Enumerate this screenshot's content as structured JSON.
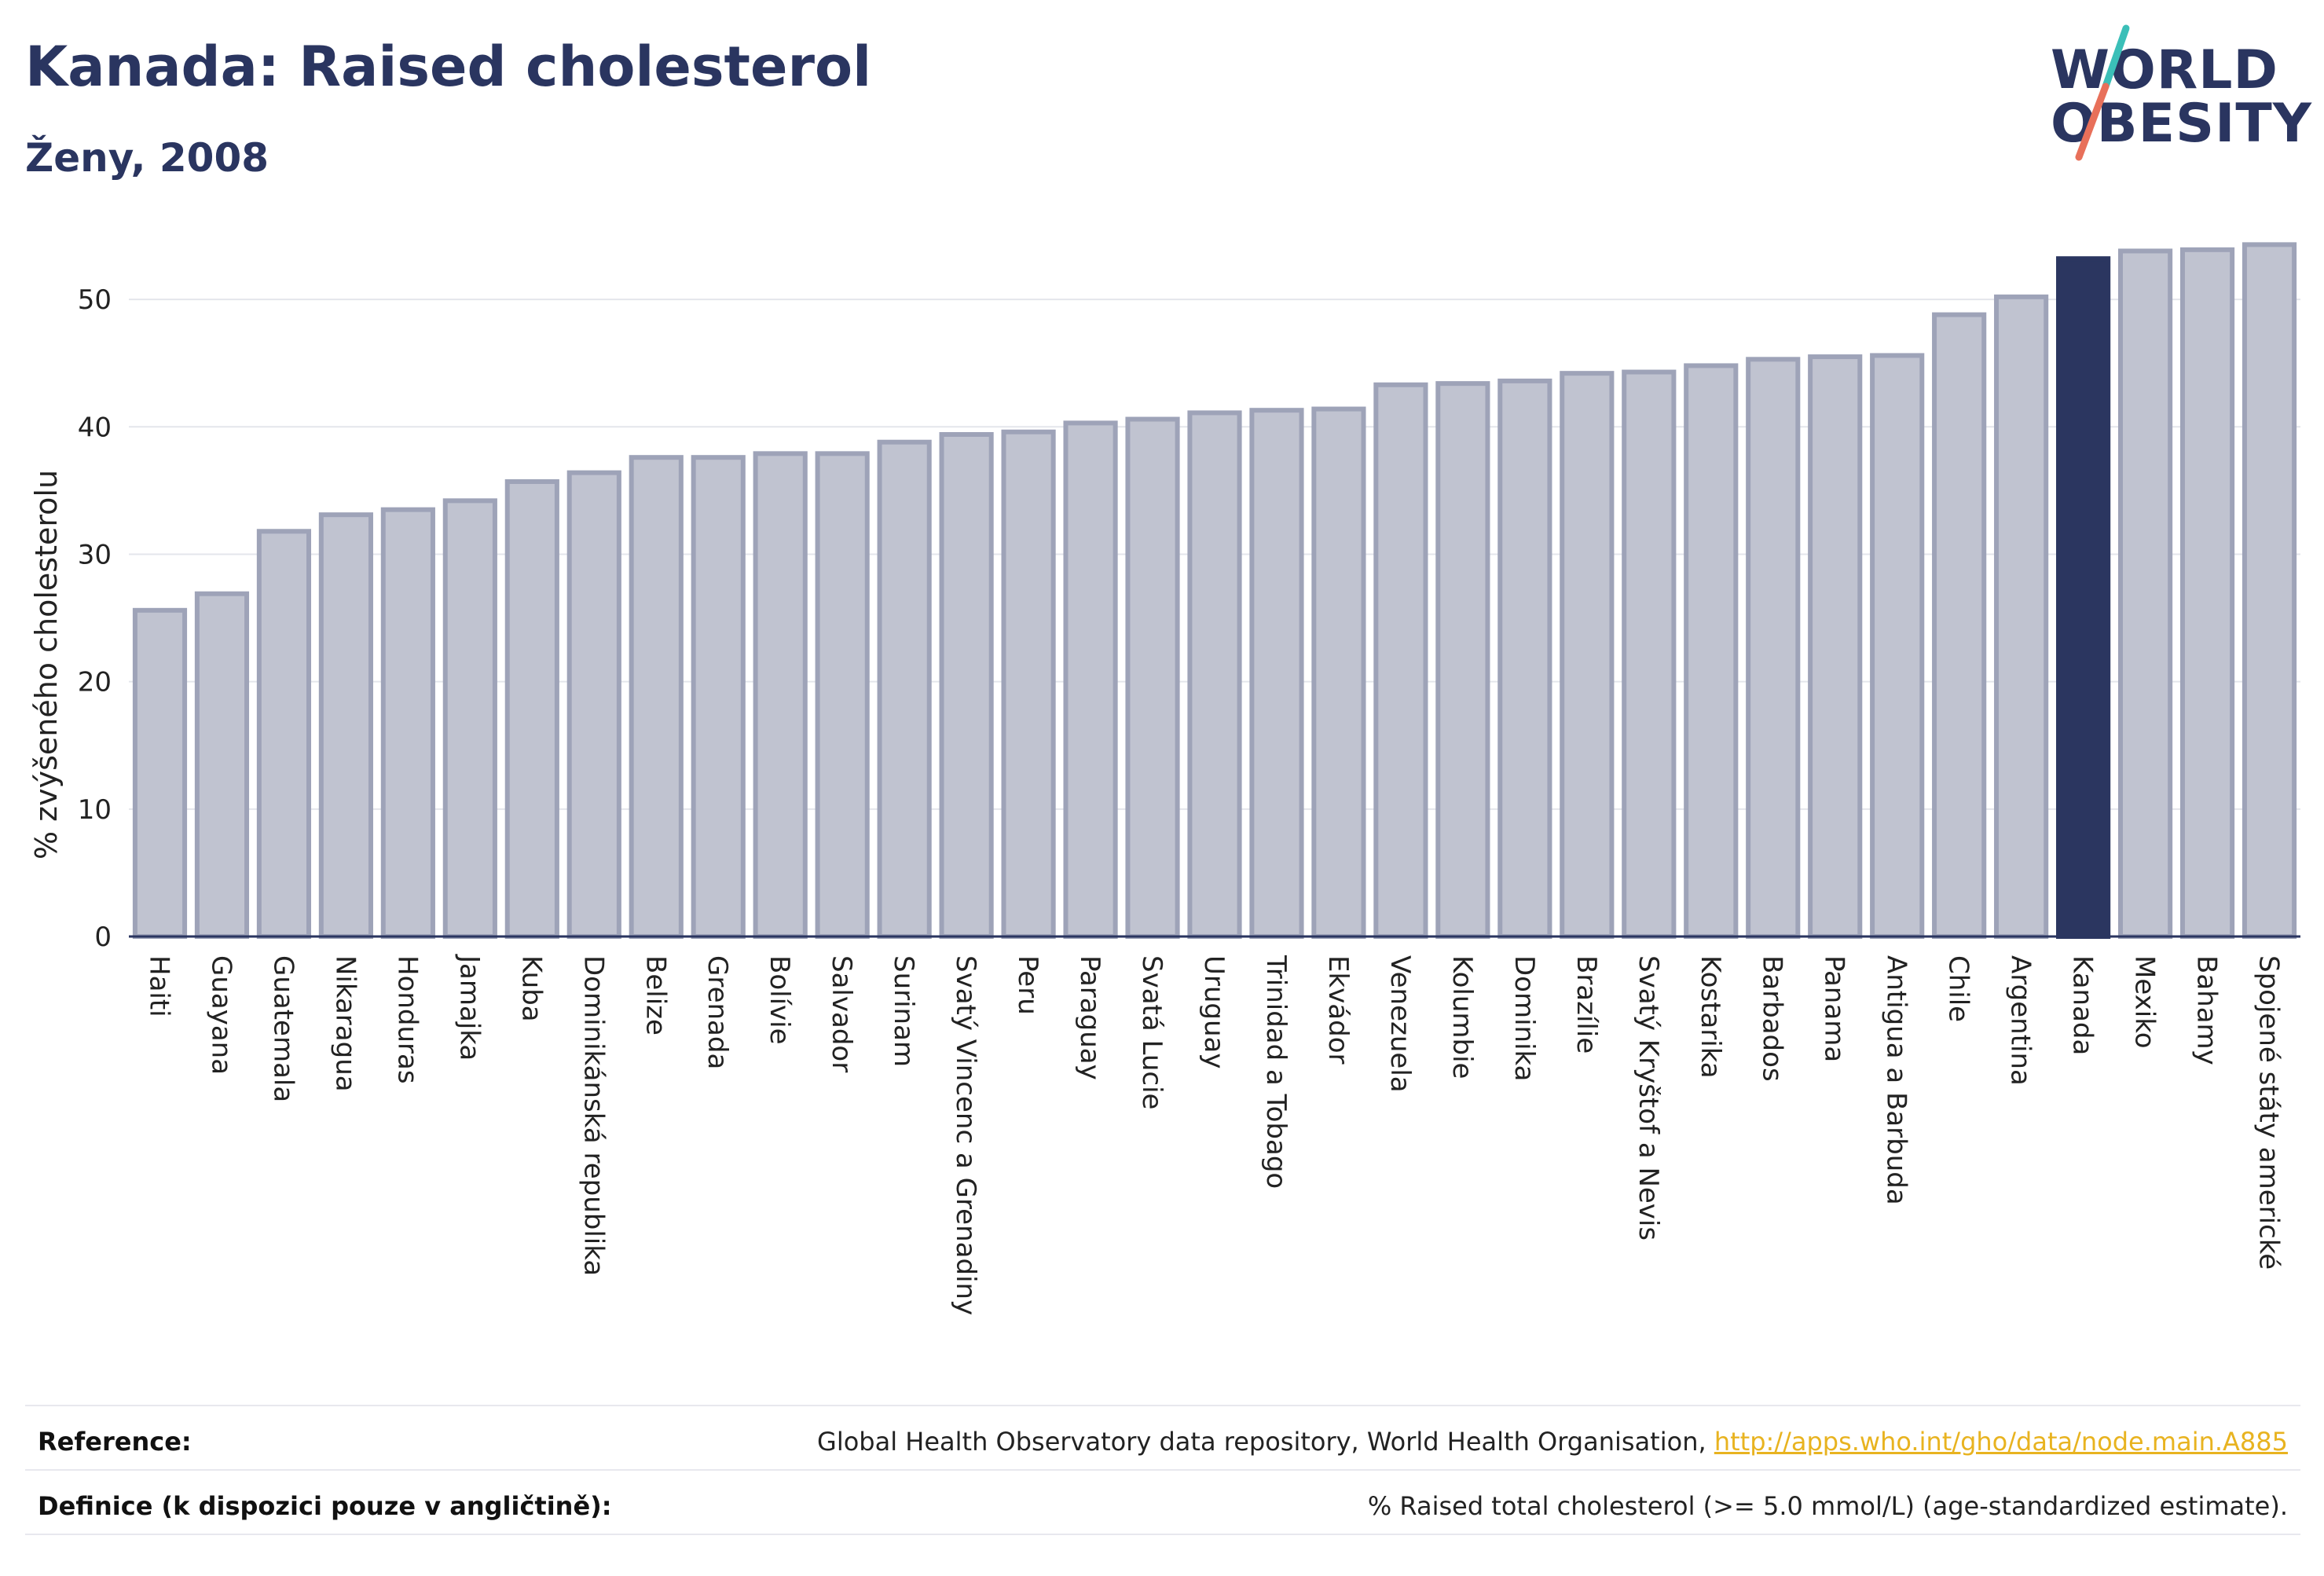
{
  "header": {
    "title": "Kanada: Raised cholesterol",
    "subtitle": "Ženy, 2008"
  },
  "logo": {
    "line1": "WORLD",
    "line2": "OBESITY",
    "colors": {
      "text": "#2a3560",
      "slash_top": "#3bbfb8",
      "slash_bottom": "#e8705a"
    }
  },
  "chart_data": {
    "type": "bar",
    "title": "Kanada: Raised cholesterol",
    "subtitle": "Ženy, 2008",
    "xlabel": "",
    "ylabel": "% zvýšeného cholesterolu",
    "ylim": [
      0,
      55
    ],
    "yticks": [
      0,
      10,
      20,
      30,
      40,
      50
    ],
    "grid": true,
    "highlight": "Kanada",
    "colors": {
      "bar": "#c0c3d0",
      "bar_border": "#9ea3b8",
      "highlight": "#2b3660"
    },
    "categories": [
      "Haiti",
      "Guayana",
      "Guatemala",
      "Nikaragua",
      "Honduras",
      "Jamajka",
      "Kuba",
      "Dominikánská republika",
      "Belize",
      "Grenada",
      "Bolívie",
      "Salvador",
      "Surinam",
      "Svatý Vincenc a Grenadiny",
      "Peru",
      "Paraguay",
      "Svatá Lucie",
      "Uruguay",
      "Trinidad a Tobago",
      "Ekvádor",
      "Venezuela",
      "Kolumbie",
      "Dominika",
      "Brazílie",
      "Svatý Kryštof a Nevis",
      "Kostarika",
      "Barbados",
      "Panama",
      "Antigua a Barbuda",
      "Chile",
      "Argentina",
      "Kanada",
      "Mexiko",
      "Bahamy",
      "Spojené státy americké"
    ],
    "values": [
      25.6,
      26.9,
      31.8,
      33.1,
      33.5,
      34.2,
      35.7,
      36.4,
      37.6,
      37.6,
      37.9,
      37.9,
      38.8,
      39.4,
      39.6,
      40.3,
      40.6,
      41.1,
      41.3,
      41.4,
      43.3,
      43.4,
      43.6,
      44.2,
      44.3,
      44.8,
      45.3,
      45.5,
      45.6,
      48.8,
      50.2,
      53.2,
      53.8,
      53.9,
      54.3
    ]
  },
  "footer": {
    "reference_label": "Reference:",
    "reference_text": "Global Health Observatory data repository, World Health Organisation, ",
    "reference_link": "http://apps.who.int/gho/data/node.main.A885",
    "definition_label": "Definice (k dispozici pouze v angličtině):",
    "definition_text": "% Raised total cholesterol (>= 5.0 mmol/L) (age-standardized estimate)."
  }
}
